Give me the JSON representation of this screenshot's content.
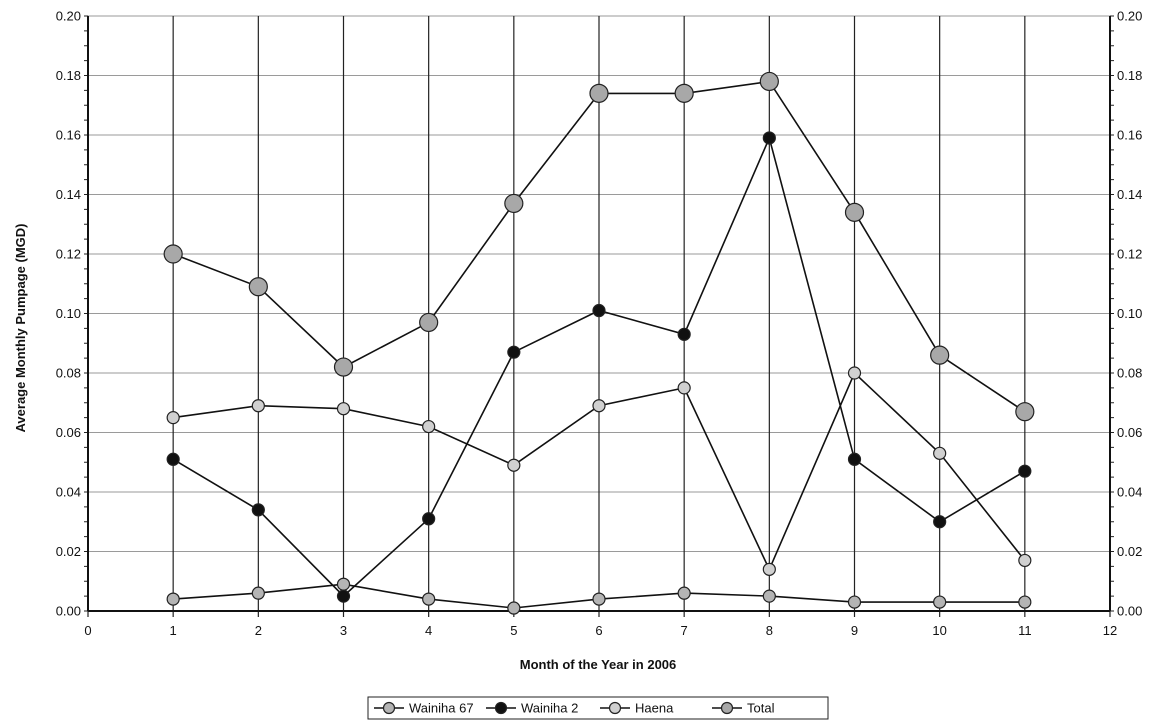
{
  "chart_data": {
    "type": "line",
    "title": "",
    "xlabel": "Month of the Year in 2006",
    "ylabel": "Average Monthly Pumpage (MGD)",
    "xlim": [
      0,
      12
    ],
    "ylim": [
      0,
      0.2
    ],
    "x_ticks": [
      "0",
      "1",
      "2",
      "3",
      "4",
      "5",
      "6",
      "7",
      "8",
      "9",
      "10",
      "11",
      "12"
    ],
    "y_ticks": [
      "0.00",
      "0.02",
      "0.04",
      "0.06",
      "0.08",
      "0.10",
      "0.12",
      "0.14",
      "0.16",
      "0.18",
      "0.20"
    ],
    "grid": true,
    "legend_position": "bottom",
    "x": [
      1,
      2,
      3,
      4,
      5,
      6,
      7,
      8,
      9,
      10,
      11
    ],
    "series": [
      {
        "name": "Wainiha 67",
        "color": "#b4b4b4",
        "marker": "medium-gray-circle",
        "values": [
          0.004,
          0.006,
          0.009,
          0.004,
          0.001,
          0.004,
          0.006,
          0.005,
          0.003,
          0.003,
          0.003
        ]
      },
      {
        "name": "Wainiha 2",
        "color": "#111111",
        "marker": "black-circle",
        "values": [
          0.051,
          0.034,
          0.005,
          0.031,
          0.087,
          0.101,
          0.093,
          0.159,
          0.051,
          0.03,
          0.047
        ]
      },
      {
        "name": "Haena",
        "color": "#d0d0d0",
        "marker": "light-gray-circle",
        "values": [
          0.065,
          0.069,
          0.068,
          0.062,
          0.049,
          0.069,
          0.075,
          0.014,
          0.08,
          0.053,
          0.017
        ]
      },
      {
        "name": "Total",
        "color": "#a8a8a8",
        "marker": "large-gray-circle",
        "values": [
          0.12,
          0.109,
          0.082,
          0.097,
          0.137,
          0.174,
          0.174,
          0.178,
          0.134,
          0.086,
          0.067
        ]
      }
    ]
  }
}
